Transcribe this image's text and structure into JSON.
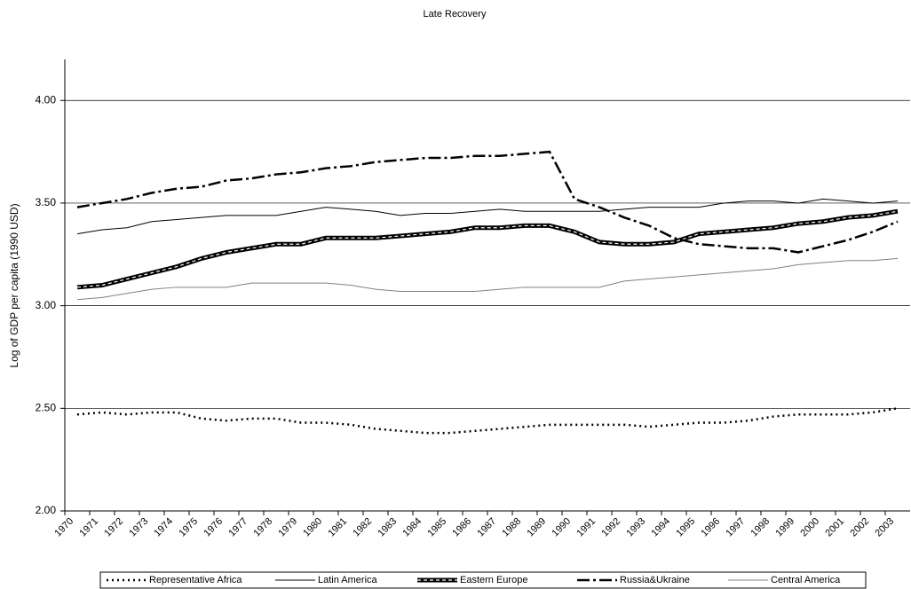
{
  "chart_data": {
    "type": "line",
    "title": "Late Recovery",
    "y_label": "Log of GDP per capita (1990 USD)",
    "categories": [
      "1970",
      "1971",
      "1972",
      "1973",
      "1974",
      "1975",
      "1976",
      "1977",
      "1978",
      "1979",
      "1980",
      "1981",
      "1982",
      "1983",
      "1984",
      "1985",
      "1986",
      "1987",
      "1988",
      "1989",
      "1990",
      "1991",
      "1992",
      "1993",
      "1994",
      "1995",
      "1996",
      "1997",
      "1998",
      "1999",
      "2000",
      "2001",
      "2002",
      "2003"
    ],
    "ylim": [
      2,
      4.2
    ],
    "yticks": [
      {
        "value": 2,
        "label": "2.00"
      },
      {
        "value": 2.5,
        "label": "2.50"
      },
      {
        "value": 3,
        "label": "3.00"
      },
      {
        "value": 3.5,
        "label": "3.50"
      },
      {
        "value": 4,
        "label": "4.00"
      }
    ],
    "grid": true,
    "legend": "bottom",
    "series": [
      {
        "name": "Representative Africa",
        "color": "#000000",
        "width": 2.5,
        "dash": "2 4",
        "values": [
          2.47,
          2.48,
          2.47,
          2.48,
          2.48,
          2.45,
          2.44,
          2.45,
          2.45,
          2.43,
          2.43,
          2.42,
          2.4,
          2.39,
          2.38,
          2.38,
          2.39,
          2.4,
          2.41,
          2.42,
          2.42,
          2.42,
          2.42,
          2.41,
          2.42,
          2.43,
          2.43,
          2.44,
          2.46,
          2.47,
          2.47,
          2.47,
          2.48,
          2.5
        ]
      },
      {
        "name": "Latin America",
        "color": "#000000",
        "width": 1,
        "dash": "none",
        "values": [
          3.35,
          3.37,
          3.38,
          3.41,
          3.42,
          3.43,
          3.44,
          3.44,
          3.44,
          3.46,
          3.48,
          3.47,
          3.46,
          3.44,
          3.45,
          3.45,
          3.46,
          3.47,
          3.46,
          3.46,
          3.46,
          3.46,
          3.47,
          3.48,
          3.48,
          3.48,
          3.5,
          3.51,
          3.51,
          3.5,
          3.52,
          3.51,
          3.5,
          3.51
        ]
      },
      {
        "name": "Eastern Europe",
        "color": "#000000",
        "width": 5,
        "dash": "none",
        "inner": "#ffffff",
        "values": [
          3.09,
          3.1,
          3.13,
          3.16,
          3.19,
          3.23,
          3.26,
          3.28,
          3.3,
          3.3,
          3.33,
          3.33,
          3.33,
          3.34,
          3.35,
          3.36,
          3.38,
          3.38,
          3.39,
          3.39,
          3.36,
          3.31,
          3.3,
          3.3,
          3.31,
          3.35,
          3.36,
          3.37,
          3.38,
          3.4,
          3.41,
          3.43,
          3.44,
          3.46
        ]
      },
      {
        "name": "Russia&Ukraine",
        "color": "#000000",
        "width": 2.5,
        "dash": "14 4 3 4",
        "values": [
          3.48,
          3.5,
          3.52,
          3.55,
          3.57,
          3.58,
          3.61,
          3.62,
          3.64,
          3.65,
          3.67,
          3.68,
          3.7,
          3.71,
          3.72,
          3.72,
          3.73,
          3.73,
          3.74,
          3.75,
          3.52,
          3.48,
          3.43,
          3.39,
          3.33,
          3.3,
          3.29,
          3.28,
          3.28,
          3.26,
          3.29,
          3.32,
          3.36,
          3.41
        ]
      },
      {
        "name": "Central America",
        "color": "#808080",
        "width": 1,
        "dash": "none",
        "values": [
          3.03,
          3.04,
          3.06,
          3.08,
          3.09,
          3.09,
          3.09,
          3.11,
          3.11,
          3.11,
          3.11,
          3.1,
          3.08,
          3.07,
          3.07,
          3.07,
          3.07,
          3.08,
          3.09,
          3.09,
          3.09,
          3.09,
          3.12,
          3.13,
          3.14,
          3.15,
          3.16,
          3.17,
          3.18,
          3.2,
          3.21,
          3.22,
          3.22,
          3.23
        ]
      }
    ]
  }
}
